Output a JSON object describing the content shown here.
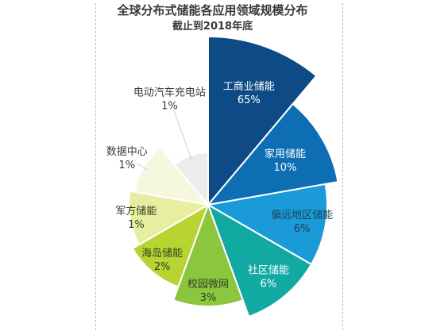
{
  "chart_data": {
    "type": "pie",
    "variant": "rose",
    "title": "全球分布式储能各应用领域规模分布",
    "subtitle": "截止到2018年底",
    "slices": [
      {
        "label": "工商业储能",
        "value_label": "65%",
        "value": 65,
        "color": "#0d4a86",
        "label_color": "#ffffff"
      },
      {
        "label": "家用储能",
        "value_label": "10%",
        "value": 10,
        "color": "#0e6eb3",
        "label_color": "#ffffff"
      },
      {
        "label": "偏远地区储能",
        "value_label": "6%",
        "value": 6,
        "color": "#1a9bd8",
        "label_color": "#1f3f57"
      },
      {
        "label": "社区储能",
        "value_label": "6%",
        "value": 6,
        "color": "#13a9a3",
        "label_color": "#ffffff"
      },
      {
        "label": "校园微网",
        "value_label": "3%",
        "value": 3,
        "color": "#8cc63f",
        "label_color": "#2f3f1f"
      },
      {
        "label": "海岛储能",
        "value_label": "2%",
        "value": 2,
        "color": "#b8d433",
        "label_color": "#2f3f1f"
      },
      {
        "label": "军方储能",
        "value_label": "1%",
        "value": 1,
        "color": "#e7eea0",
        "label_color": "#2f3f1f"
      },
      {
        "label": "数据中心",
        "value_label": "1%",
        "value": 1,
        "color": "#f6f8dd",
        "label_color": "#3a3a3a"
      },
      {
        "label": "电动汽车充电站",
        "value_label": "1%",
        "value": 1,
        "color": "#ececec",
        "label_color": "#3a3a3a"
      }
    ]
  }
}
